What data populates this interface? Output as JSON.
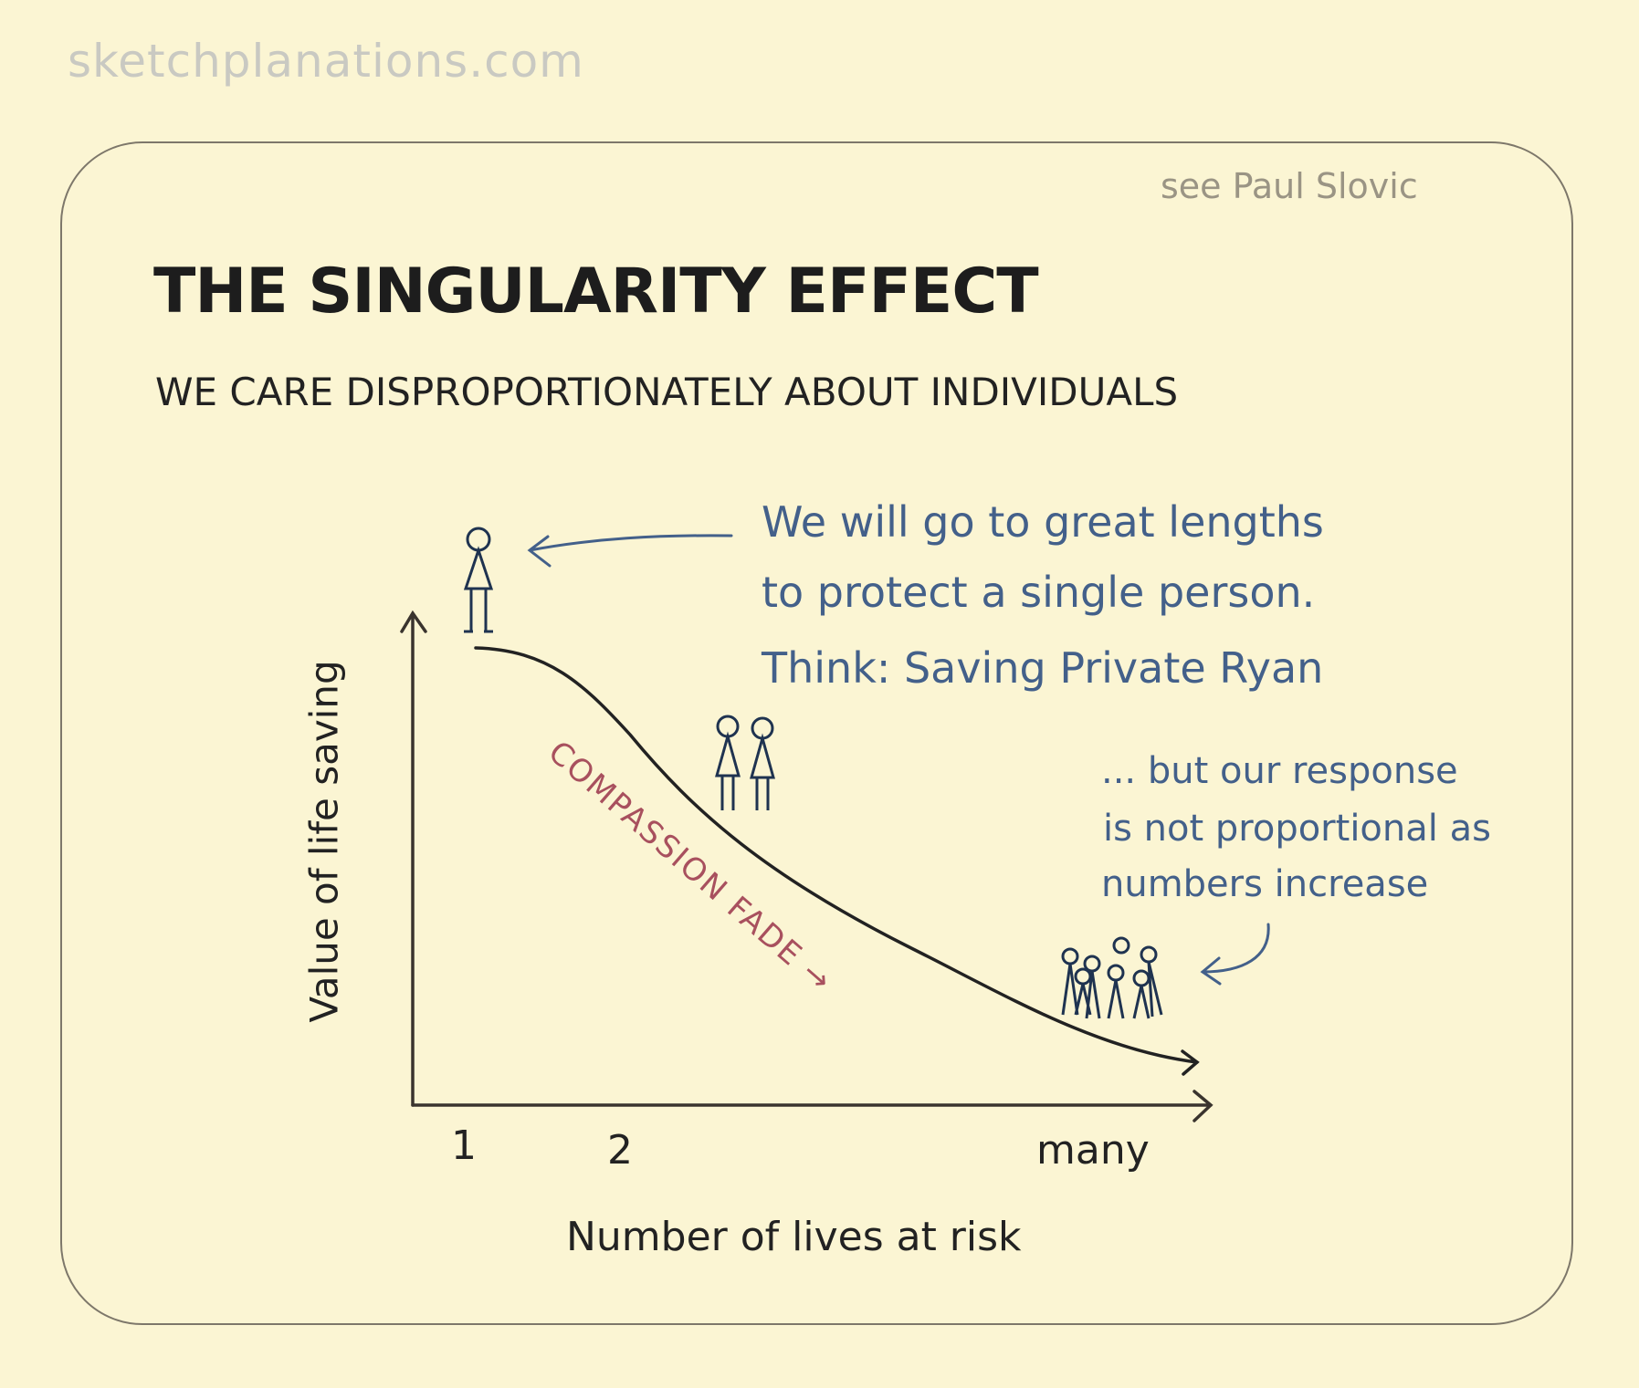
{
  "watermark": "sketchplanations.com",
  "credit": "see Paul Slovic",
  "title": "THE SINGULARITY EFFECT",
  "subtitle": "WE CARE DISPROPORTIONATELY ABOUT INDIVIDUALS",
  "axes": {
    "y_label": "Value of life saving",
    "x_label": "Number of lives at risk",
    "x_ticks": [
      "1",
      "2",
      "many"
    ]
  },
  "curve_label": "COMPASSION FADE →",
  "annotations": {
    "single": [
      "We will go to great lengths",
      "to protect a single person.",
      "Think: Saving Private Ryan"
    ],
    "many": [
      "... but our response",
      "is not proportional as",
      "numbers increase"
    ]
  },
  "colors": {
    "ink": "#222222",
    "annotation": "#43608a",
    "curve_label": "#a8505e",
    "background": "#fbf5d3"
  }
}
